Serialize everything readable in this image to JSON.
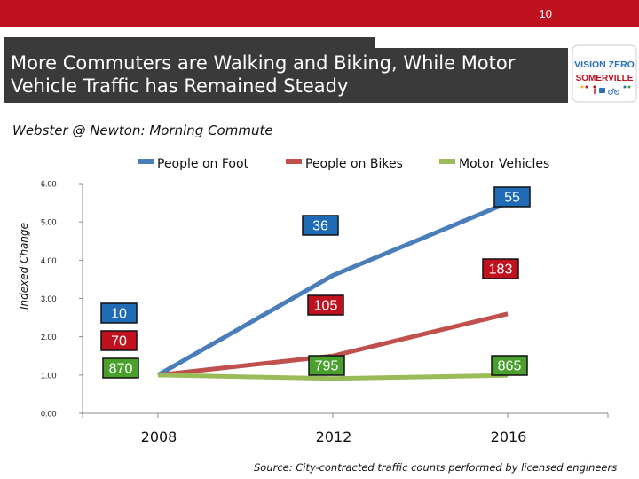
{
  "header": {
    "page_number": "10",
    "title": "More Commuters are Walking and Biking, While Motor Vehicle Traffic has Remained Steady"
  },
  "logo": {
    "line1": "VISION ZERO",
    "line2": "SOMERVILLE",
    "colors": {
      "vision": "#c0111f",
      "zero": "#2e6fb6",
      "somerville": "#c0111f"
    }
  },
  "subtitle": "Webster @ Newton: Morning Commute",
  "source": "Source: City-contracted traffic counts performed by licensed engineers",
  "chart_data": {
    "type": "line",
    "x": [
      "2008",
      "2012",
      "2016"
    ],
    "ylabel": "Indexed Change",
    "ylim": [
      0,
      6
    ],
    "yticks": [
      "0.00",
      "1.00",
      "2.00",
      "3.00",
      "4.00",
      "5.00",
      "6.00"
    ],
    "grid": false,
    "legend_position": "top",
    "series": [
      {
        "name": "People on Foot",
        "values": [
          1.0,
          3.6,
          5.5
        ],
        "color": "#4a7ebb",
        "labels": [
          "10",
          "36",
          "55"
        ],
        "label_bg": "#1f6bb5",
        "label_fg": "#ffffff"
      },
      {
        "name": "People on Bikes",
        "values": [
          1.0,
          1.5,
          2.6
        ],
        "color": "#c0504d",
        "labels": [
          "70",
          "105",
          "183"
        ],
        "label_bg": "#c0111f",
        "label_fg": "#ffffff"
      },
      {
        "name": "Motor Vehicles",
        "values": [
          1.0,
          0.91,
          0.99
        ],
        "color": "#9bbb59",
        "labels": [
          "870",
          "795",
          "865"
        ],
        "label_bg": "#4aa02c",
        "label_fg": "#ffffff"
      }
    ]
  }
}
